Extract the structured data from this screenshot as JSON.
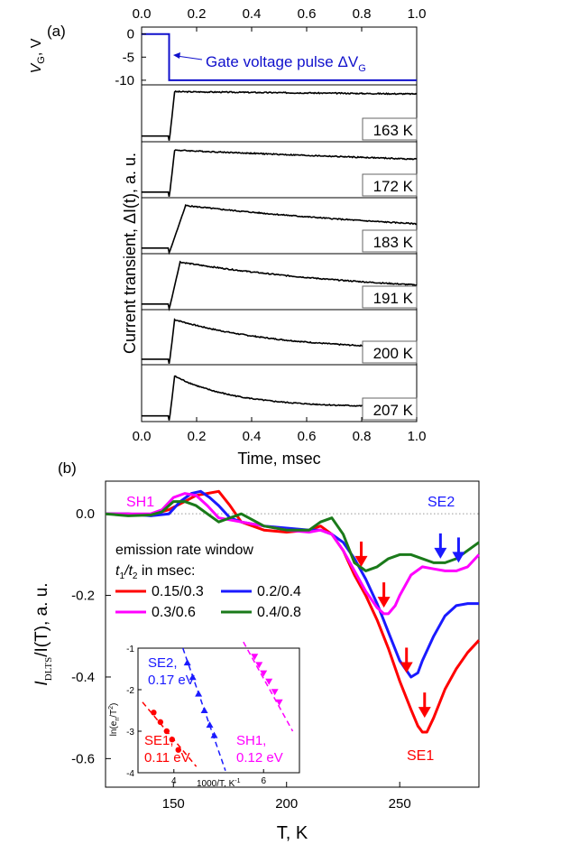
{
  "chart_data": [
    {
      "panel": "(a)",
      "type": "line",
      "xlabel": "Time, msec",
      "xlim": [
        0.0,
        1.0
      ],
      "xticks": [
        "0.0",
        "0.2",
        "0.4",
        "0.6",
        "0.8",
        "1.0"
      ],
      "top_axis_ticks": [
        "0.0",
        "0.2",
        "0.4",
        "0.6",
        "0.8",
        "1.0"
      ],
      "ylabel": "Current transient, ΔI(t), a. u.",
      "gate_subplot": {
        "ylabel": "V_G, V",
        "ylabel_main": "V",
        "ylabel_sub": "G",
        "ylabel_unit": ", V",
        "ylim": [
          -11,
          1.5
        ],
        "yticks": [
          "0",
          "-5",
          "-10"
        ],
        "annotation": "Gate voltage pulse ΔV",
        "annotation_sub": "G",
        "color": "#1010cc",
        "x": [
          0.0,
          0.1,
          0.1,
          1.0
        ],
        "y": [
          0,
          0,
          -10,
          -10
        ]
      },
      "series": [
        {
          "name": "163 K",
          "rise_ms": 0.12,
          "peak": 0.88,
          "tau_ms": 12.0,
          "start_level": 0.1,
          "color": "#000000"
        },
        {
          "name": "172 K",
          "rise_ms": 0.12,
          "peak": 0.85,
          "tau_ms": 2.8,
          "start_level": 0.1,
          "color": "#000000"
        },
        {
          "name": "183 K",
          "rise_ms": 0.16,
          "peak": 0.86,
          "tau_ms": 1.1,
          "start_level": 0.1,
          "color": "#000000"
        },
        {
          "name": "191 K",
          "rise_ms": 0.14,
          "peak": 0.85,
          "tau_ms": 0.75,
          "start_level": 0.1,
          "color": "#000000"
        },
        {
          "name": "200 K",
          "rise_ms": 0.12,
          "peak": 0.82,
          "tau_ms": 0.38,
          "start_level": 0.1,
          "color": "#000000"
        },
        {
          "name": "207 K",
          "rise_ms": 0.12,
          "peak": 0.8,
          "tau_ms": 0.22,
          "start_level": 0.1,
          "color": "#000000"
        }
      ]
    },
    {
      "panel": "(b)",
      "type": "line",
      "xlabel": "T, K",
      "xlim": [
        120,
        285
      ],
      "xticks": [
        150,
        200,
        250
      ],
      "ylabel_main": "I",
      "ylabel_sub": "DLTS",
      "ylabel_rest": "/I(T), a. u.",
      "ylim": [
        -0.67,
        0.08
      ],
      "yticks": [
        "0.0",
        "-0.2",
        "-0.4",
        "-0.6"
      ],
      "legend_title_1": "emission rate window",
      "legend_title_2_a": "t",
      "legend_title_2_b": "1",
      "legend_title_2_c": "/t",
      "legend_title_2_d": "2",
      "legend_title_2_e": " in msec:",
      "peak_labels": [
        {
          "text": "SH1",
          "color": "#ff00ff"
        },
        {
          "text": "SE2",
          "color": "#1a1aff"
        },
        {
          "text": "SE1",
          "color": "#ff0000"
        }
      ],
      "series": [
        {
          "name": "0.15/0.3",
          "color": "#ff0000",
          "x": [
            120,
            130,
            140,
            148,
            155,
            160,
            165,
            170,
            175,
            180,
            190,
            200,
            210,
            215,
            220,
            225,
            230,
            235,
            240,
            245,
            250,
            255,
            258,
            260,
            262,
            265,
            270,
            275,
            280,
            285
          ],
          "y": [
            0,
            0,
            -0.003,
            0.01,
            0.03,
            0.045,
            0.05,
            0.055,
            0.02,
            -0.02,
            -0.04,
            -0.045,
            -0.04,
            -0.03,
            -0.05,
            -0.09,
            -0.15,
            -0.2,
            -0.26,
            -0.33,
            -0.41,
            -0.48,
            -0.52,
            -0.535,
            -0.535,
            -0.5,
            -0.43,
            -0.38,
            -0.34,
            -0.31
          ],
          "arrows_x": [
            233,
            243,
            253,
            261
          ]
        },
        {
          "name": "0.2/0.4",
          "color": "#1a1aff",
          "x": [
            120,
            130,
            140,
            148,
            153,
            158,
            162,
            166,
            170,
            175,
            180,
            190,
            200,
            210,
            215,
            220,
            225,
            230,
            235,
            240,
            245,
            250,
            255,
            258,
            260,
            265,
            270,
            275,
            280,
            285
          ],
          "y": [
            0,
            0,
            -0.005,
            0,
            0.03,
            0.05,
            0.055,
            0.04,
            0.02,
            -0.01,
            -0.02,
            -0.03,
            -0.035,
            -0.04,
            -0.04,
            -0.05,
            -0.07,
            -0.11,
            -0.16,
            -0.22,
            -0.29,
            -0.36,
            -0.4,
            -0.39,
            -0.36,
            -0.3,
            -0.25,
            -0.225,
            -0.22,
            -0.22
          ],
          "arrows_x": [
            268,
            276
          ]
        },
        {
          "name": "0.3/0.6",
          "color": "#ff00ff",
          "x": [
            120,
            130,
            140,
            145,
            150,
            155,
            160,
            165,
            170,
            175,
            180,
            190,
            200,
            210,
            215,
            220,
            225,
            230,
            235,
            240,
            243,
            245,
            248,
            250,
            255,
            260,
            265,
            270,
            275,
            280,
            285
          ],
          "y": [
            0,
            0,
            0,
            0.01,
            0.04,
            0.05,
            0.045,
            0.02,
            -0.01,
            -0.015,
            -0.02,
            -0.03,
            -0.04,
            -0.045,
            -0.04,
            -0.05,
            -0.09,
            -0.14,
            -0.19,
            -0.23,
            -0.245,
            -0.245,
            -0.225,
            -0.2,
            -0.15,
            -0.13,
            -0.135,
            -0.14,
            -0.14,
            -0.13,
            -0.1
          ]
        },
        {
          "name": "0.4/0.8",
          "color": "#1a7a1a",
          "x": [
            120,
            130,
            140,
            145,
            150,
            155,
            160,
            165,
            170,
            175,
            180,
            190,
            200,
            210,
            215,
            220,
            225,
            230,
            235,
            240,
            245,
            250,
            255,
            260,
            265,
            270,
            275,
            280,
            285
          ],
          "y": [
            0,
            -0.005,
            -0.003,
            0.005,
            0.03,
            0.03,
            0.02,
            0.0,
            -0.02,
            -0.01,
            0.0,
            -0.03,
            -0.04,
            -0.04,
            -0.02,
            -0.01,
            -0.05,
            -0.12,
            -0.14,
            -0.13,
            -0.11,
            -0.1,
            -0.1,
            -0.11,
            -0.12,
            -0.12,
            -0.11,
            -0.09,
            -0.07
          ]
        }
      ],
      "inset": {
        "type": "scatter",
        "xlabel": "1000/T, K",
        "xlabel_sup": "-1",
        "ylabel": "ln(e",
        "ylabel_sub": "n",
        "ylabel_rest": "/T",
        "ylabel_sup": "2",
        "ylabel_end": ")",
        "xlim": [
          3.2,
          6.8
        ],
        "ylim": [
          -4,
          -1
        ],
        "xticks": [
          "4",
          "6"
        ],
        "yticks": [
          "-1",
          "-2",
          "-3",
          "-4"
        ],
        "labels": [
          {
            "line1": "SE2,",
            "line2": "0.17 eV",
            "color": "#1a1aff"
          },
          {
            "line1": "SE1,",
            "line2": "0.11 eV",
            "color": "#ff0000"
          },
          {
            "line1": "SH1,",
            "line2": "0.12 eV",
            "color": "#ff00ff"
          }
        ],
        "series": [
          {
            "name": "SE1",
            "color": "#ff0000",
            "marker": "circle",
            "x": [
              3.55,
              3.7,
              3.84,
              3.96,
              4.1
            ],
            "y": [
              -2.55,
              -2.78,
              -3.0,
              -3.2,
              -3.45
            ],
            "fit_x": [
              3.3,
              4.5
            ],
            "fit_y": [
              -2.3,
              -3.85
            ]
          },
          {
            "name": "SE2",
            "color": "#1a1aff",
            "marker": "triangle-up",
            "x": [
              4.3,
              4.42,
              4.55,
              4.68,
              4.8,
              4.9
            ],
            "y": [
              -1.35,
              -1.7,
              -2.1,
              -2.5,
              -2.85,
              -3.1
            ],
            "fit_x": [
              4.2,
              5.15
            ],
            "fit_y": [
              -1.0,
              -3.95
            ]
          },
          {
            "name": "SH1",
            "color": "#ff00ff",
            "marker": "triangle-down",
            "x": [
              5.8,
              5.9,
              6.0,
              6.12,
              6.25,
              6.35
            ],
            "y": [
              -1.2,
              -1.4,
              -1.6,
              -1.8,
              -2.05,
              -2.3
            ],
            "fit_x": [
              5.55,
              6.65
            ],
            "fit_y": [
              -0.85,
              -3.0
            ]
          }
        ]
      }
    }
  ]
}
